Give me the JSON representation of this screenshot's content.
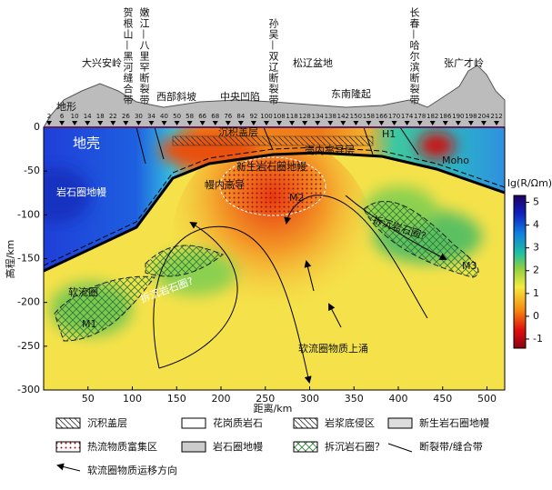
{
  "top_labels": {
    "daxinganling": "大兴安岭",
    "hegenshan": "贺根山—黑河缝合带",
    "nenjiang": "嫩江—八里罕断裂带",
    "sunwu": "孙吴—双辽断裂带",
    "songliao": "松辽盆地",
    "changchun": "长春—哈尔滨断裂带",
    "zhangguangcai": "张广才岭",
    "xibu": "西部斜坡",
    "zhongyang": "中央凹陷",
    "dongnan": "东南隆起",
    "dixing": "地形"
  },
  "stations": [
    "2",
    "6",
    "10",
    "14",
    "18",
    "22",
    "26",
    "30",
    "34",
    "40",
    "50",
    "58",
    "66",
    "68",
    "76",
    "84",
    "92",
    "100",
    "108",
    "118",
    "128",
    "134",
    "138",
    "142",
    "150",
    "158",
    "166",
    "170",
    "174",
    "178",
    "182",
    "186",
    "190",
    "198",
    "204",
    "212"
  ],
  "section_labels": {
    "chenji": "沉积盖层",
    "diqiao": "地壳",
    "qiaonei": "壳内高导层",
    "xinsheng": "新生岩石圈地幔",
    "mannei": "幔内高导",
    "m2": "M2",
    "h1": "H1",
    "moho": "Moho",
    "yanshiquan": "岩石圈地幔",
    "chaichen_right": "拆沉岩石圈?",
    "m3": "M3",
    "ruanliu": "软流圈",
    "chaichen_left": "拆沉岩石圈?",
    "m1": "M1",
    "yongshang": "软流圈物质上涌"
  },
  "axes": {
    "xlabel": "距离/km",
    "ylabel": "高程/km",
    "xlim": [
      0,
      520
    ],
    "xticks": [
      50,
      100,
      150,
      200,
      250,
      300,
      350,
      400,
      450,
      500
    ],
    "ylim": [
      -300,
      0
    ],
    "yticks": [
      0,
      -50,
      -100,
      -150,
      -200,
      -250,
      -300
    ]
  },
  "colorbar": {
    "label": "lg(R/Ωm)",
    "clim": [
      -1.4,
      5.3
    ],
    "ticks": [
      -1,
      0,
      1,
      2,
      3,
      4,
      5
    ]
  },
  "legend": [
    "沉积盖层",
    "花岗质岩石",
    "岩浆底侵区",
    "新生岩石圈地幔",
    "热流物质富集区",
    "岩石圈地幔",
    "拆沉岩石圈？",
    "断裂带/缝合带",
    "软流圈物质运移方向"
  ]
}
